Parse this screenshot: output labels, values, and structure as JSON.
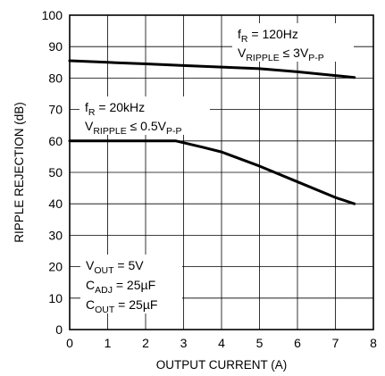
{
  "chart_data": {
    "type": "line",
    "xlabel": "OUTPUT CURRENT (A)",
    "ylabel": "RIPPLE REJECTION (dB)",
    "xlim": [
      0,
      8
    ],
    "ylim": [
      0,
      100
    ],
    "x_ticks": [
      "0",
      "1",
      "2",
      "3",
      "4",
      "5",
      "6",
      "7",
      "8"
    ],
    "y_ticks": [
      "0",
      "10",
      "20",
      "30",
      "40",
      "50",
      "60",
      "70",
      "80",
      "90",
      "100"
    ],
    "grid": true,
    "series": [
      {
        "id": "fr-120hz",
        "x": [
          0,
          1,
          2,
          3,
          4,
          5,
          6,
          7,
          7.5
        ],
        "y": [
          85.5,
          85,
          84.5,
          84,
          83.5,
          83,
          82,
          80.8,
          80.2
        ]
      },
      {
        "id": "fr-20khz",
        "x": [
          0,
          1,
          2,
          2.8,
          3.5,
          4,
          5,
          6,
          7,
          7.5
        ],
        "y": [
          60,
          60,
          60,
          60,
          58,
          56.5,
          52,
          47,
          42,
          40
        ]
      }
    ],
    "annotations": {
      "a120": {
        "main": "f",
        "sub": "R",
        "rest": " = 120Hz"
      },
      "a120b": {
        "main": "V",
        "sub": "RIPPLE",
        "rest": " ≤ 3V",
        "sub2": "P-P"
      },
      "a20k": {
        "main": "f",
        "sub": "R",
        "rest": " = 20kHz"
      },
      "a20kb": {
        "main": "V",
        "sub": "RIPPLE",
        "rest": " ≤ 0.5V",
        "sub2": "P-P"
      },
      "vout": {
        "main": "V",
        "sub": "OUT",
        "rest": " = 5V"
      },
      "cadj": {
        "main": "C",
        "sub": "ADJ",
        "rest": " = 25µF"
      },
      "cout": {
        "main": "C",
        "sub": "OUT",
        "rest": " = 25µF"
      }
    }
  }
}
